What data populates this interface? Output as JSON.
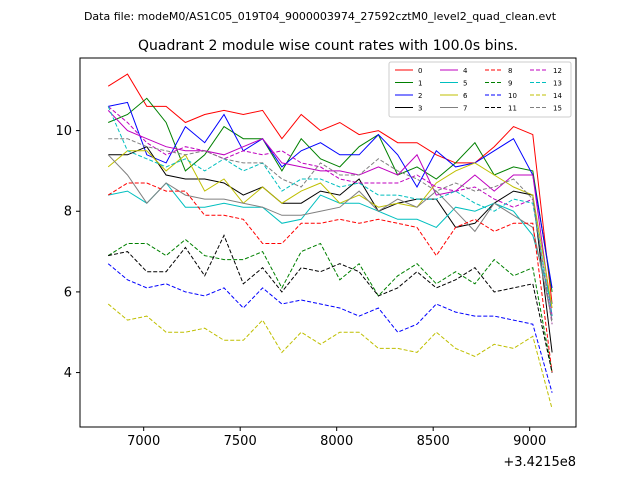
{
  "header": {
    "file_label": "Data file: modeM0/AS1C05_019T04_9000003974_27592cztM0_level2_quad_clean.evt"
  },
  "chart_data": {
    "type": "line",
    "title": "Quadrant 2 module wise count rates with 100.0s bins.",
    "xlabel": "",
    "ylabel": "",
    "x_offset_label": "+3.4215e8",
    "xlim": [
      6670,
      9240
    ],
    "ylim": [
      2.65,
      11.8
    ],
    "x_ticks": [
      7000,
      7500,
      8000,
      8500,
      9000
    ],
    "x_tick_labels": [
      "7000",
      "7500",
      "8000",
      "8500",
      "9000"
    ],
    "y_ticks": [
      4,
      6,
      8,
      10
    ],
    "y_tick_labels": [
      "4",
      "6",
      "8",
      "10"
    ],
    "x": [
      6816,
      6916,
      7016,
      7116,
      7216,
      7316,
      7416,
      7516,
      7616,
      7716,
      7816,
      7916,
      8016,
      8116,
      8216,
      8316,
      8416,
      8516,
      8616,
      8716,
      8816,
      8916,
      9016,
      9116
    ],
    "series": [
      {
        "name": "0",
        "color": "#ff0000",
        "dash": "solid",
        "values": [
          11.1,
          11.4,
          10.6,
          10.6,
          10.2,
          10.4,
          10.5,
          10.4,
          10.5,
          9.8,
          10.4,
          10.0,
          10.2,
          9.9,
          10.0,
          9.7,
          9.7,
          9.4,
          9.2,
          9.2,
          9.6,
          10.1,
          9.9,
          5.7
        ]
      },
      {
        "name": "1",
        "color": "#008000",
        "dash": "solid",
        "values": [
          10.2,
          10.4,
          10.8,
          10.2,
          9.0,
          9.4,
          10.1,
          9.8,
          9.8,
          9.0,
          9.8,
          9.3,
          9.1,
          9.6,
          9.9,
          8.9,
          9.1,
          8.8,
          9.2,
          9.7,
          8.9,
          9.1,
          9.0,
          6.0
        ]
      },
      {
        "name": "2",
        "color": "#0000ff",
        "dash": "solid",
        "values": [
          10.6,
          10.7,
          9.4,
          9.2,
          10.1,
          9.7,
          10.4,
          9.5,
          9.8,
          9.1,
          9.5,
          9.7,
          9.4,
          9.4,
          9.9,
          9.4,
          8.6,
          9.5,
          9.1,
          9.2,
          9.5,
          9.8,
          8.9,
          6.1
        ]
      },
      {
        "name": "3",
        "color": "#000000",
        "dash": "solid",
        "values": [
          9.4,
          9.4,
          9.6,
          8.9,
          8.8,
          8.8,
          8.7,
          8.4,
          8.6,
          8.2,
          8.2,
          8.5,
          8.4,
          8.8,
          8.0,
          8.2,
          8.3,
          8.3,
          7.6,
          7.7,
          8.2,
          8.5,
          8.4,
          4.5
        ]
      },
      {
        "name": "4",
        "color": "#bf00bf",
        "dash": "solid",
        "values": [
          10.5,
          10.0,
          9.8,
          9.6,
          9.5,
          9.5,
          9.4,
          9.6,
          9.8,
          9.2,
          9.1,
          9.0,
          9.0,
          8.9,
          9.1,
          8.9,
          9.4,
          8.4,
          8.5,
          8.9,
          8.5,
          8.9,
          8.9,
          5.4
        ]
      },
      {
        "name": "5",
        "color": "#00bfbf",
        "dash": "solid",
        "values": [
          8.4,
          8.5,
          8.2,
          8.7,
          8.1,
          8.1,
          8.2,
          8.1,
          8.1,
          7.7,
          7.8,
          8.4,
          8.2,
          8.2,
          8.0,
          7.8,
          7.8,
          7.6,
          8.1,
          8.0,
          8.2,
          8.0,
          7.4,
          5.7
        ]
      },
      {
        "name": "6",
        "color": "#bfbf00",
        "dash": "solid",
        "values": [
          9.1,
          9.5,
          9.5,
          9.0,
          9.4,
          8.5,
          8.8,
          8.2,
          8.6,
          8.2,
          8.5,
          8.7,
          8.2,
          8.4,
          8.1,
          8.2,
          8.1,
          8.7,
          9.0,
          9.2,
          8.9,
          8.6,
          8.4,
          5.6
        ]
      },
      {
        "name": "7",
        "color": "#808080",
        "dash": "solid",
        "values": [
          9.4,
          8.9,
          8.2,
          8.7,
          8.4,
          8.3,
          8.3,
          8.2,
          8.1,
          7.9,
          7.9,
          8.0,
          8.1,
          8.5,
          8.0,
          8.3,
          8.1,
          8.5,
          8.0,
          7.5,
          8.2,
          7.9,
          7.6,
          5.3
        ]
      },
      {
        "name": "8",
        "color": "#ff0000",
        "dash": "dashed",
        "values": [
          8.4,
          8.7,
          8.7,
          8.5,
          8.5,
          7.9,
          7.9,
          7.8,
          7.2,
          7.2,
          7.7,
          7.7,
          7.8,
          7.7,
          7.8,
          7.7,
          7.6,
          6.9,
          7.6,
          7.8,
          7.5,
          7.7,
          7.7,
          4.0
        ]
      },
      {
        "name": "9",
        "color": "#008000",
        "dash": "dashed",
        "values": [
          6.9,
          7.2,
          7.2,
          6.9,
          7.3,
          6.9,
          6.8,
          6.8,
          7.0,
          6.1,
          7.0,
          7.2,
          6.3,
          6.7,
          5.9,
          6.4,
          6.7,
          6.2,
          6.5,
          6.2,
          6.8,
          6.4,
          6.6,
          4.0
        ]
      },
      {
        "name": "10",
        "color": "#0000ff",
        "dash": "dashed",
        "values": [
          6.7,
          6.3,
          6.1,
          6.2,
          6.0,
          5.9,
          6.1,
          5.6,
          6.1,
          5.7,
          5.8,
          5.7,
          5.6,
          5.4,
          5.6,
          5.0,
          5.2,
          5.7,
          5.5,
          5.4,
          5.4,
          5.3,
          5.2,
          3.5
        ]
      },
      {
        "name": "11",
        "color": "#000000",
        "dash": "dashed",
        "values": [
          6.9,
          7.0,
          6.5,
          6.5,
          7.1,
          6.4,
          7.4,
          6.2,
          6.6,
          6.0,
          6.6,
          6.5,
          6.7,
          6.5,
          5.9,
          6.1,
          6.5,
          6.1,
          6.3,
          6.6,
          6.0,
          6.1,
          6.2,
          4.0
        ]
      },
      {
        "name": "12",
        "color": "#bf00bf",
        "dash": "dashed",
        "values": [
          10.6,
          10.2,
          9.7,
          9.4,
          9.6,
          9.5,
          9.3,
          9.5,
          9.4,
          9.5,
          9.2,
          9.1,
          8.8,
          8.7,
          8.7,
          8.7,
          8.9,
          8.6,
          8.5,
          8.6,
          8.3,
          8.1,
          8.3,
          5.2
        ]
      },
      {
        "name": "13",
        "color": "#00bfbf",
        "dash": "dashed",
        "values": [
          10.6,
          9.5,
          9.3,
          9.1,
          9.3,
          9.0,
          9.3,
          9.0,
          9.2,
          8.5,
          8.8,
          8.8,
          8.6,
          8.7,
          8.4,
          8.4,
          8.3,
          8.3,
          8.5,
          8.2,
          8.0,
          8.3,
          8.2,
          5.4
        ]
      },
      {
        "name": "14",
        "color": "#bfbf00",
        "dash": "dashed",
        "values": [
          5.7,
          5.3,
          5.4,
          5.0,
          5.0,
          5.1,
          4.8,
          4.8,
          5.3,
          4.5,
          5.0,
          4.7,
          5.0,
          5.0,
          4.6,
          4.6,
          4.5,
          5.0,
          4.6,
          4.4,
          4.7,
          4.6,
          4.9,
          3.1
        ]
      },
      {
        "name": "15",
        "color": "#808080",
        "dash": "dashed",
        "values": [
          9.8,
          9.8,
          9.6,
          9.5,
          9.4,
          9.5,
          9.3,
          9.2,
          9.2,
          8.8,
          8.6,
          9.2,
          8.9,
          8.9,
          9.3,
          9.0,
          8.8,
          8.5,
          8.7,
          8.5,
          8.6,
          8.8,
          8.3,
          5.2
        ]
      }
    ],
    "legend": {
      "placement": "top-right",
      "columns": 4
    }
  }
}
